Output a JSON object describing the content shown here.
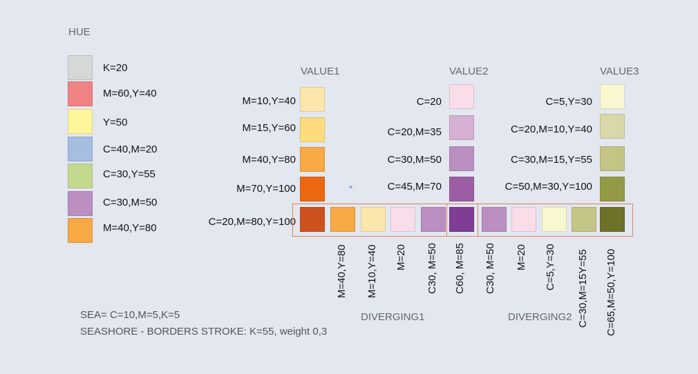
{
  "hue": {
    "title": "HUE",
    "items": [
      {
        "label": "K=20",
        "color": "#d6d7d8"
      },
      {
        "label": "M=60,Y=40",
        "color": "#ef8383"
      },
      {
        "label": "Y=50",
        "color": "#fff59a"
      },
      {
        "label": "C=40,M=20",
        "color": "#a4bde0"
      },
      {
        "label": "C=30,Y=55",
        "color": "#c3d98e"
      },
      {
        "label": "C=30,M=50",
        "color": "#bb8fc1"
      },
      {
        "label": "M=40,Y=80",
        "color": "#f6a944"
      }
    ]
  },
  "value1": {
    "title": "VALUE1",
    "items": [
      {
        "label": "M=10,Y=40",
        "color": "#fde6ab"
      },
      {
        "label": "M=15,Y=60",
        "color": "#fedb7c"
      },
      {
        "label": "M=40,Y=80",
        "color": "#f6a944"
      },
      {
        "label": "M=70,Y=100",
        "color": "#ec6810"
      },
      {
        "label": "C=20,M=80,Y=100",
        "color": "#cd5220"
      }
    ]
  },
  "value2": {
    "title": "VALUE2",
    "items": [
      {
        "label": "C=20",
        "color": "#f9dde8"
      },
      {
        "label": "C=20,M=35",
        "color": "#d6b0d2"
      },
      {
        "label": "C=30,M=50",
        "color": "#bb8fc1"
      },
      {
        "label": "C=45,M=70",
        "color": "#9d5ea6"
      },
      {
        "label": "C60, M=85",
        "color": "#7f3d95"
      }
    ]
  },
  "value3": {
    "title": "VALUE3",
    "items": [
      {
        "label": "C=5,Y=30",
        "color": "#f8f7cf"
      },
      {
        "label": "C=20,M=10,Y=40",
        "color": "#dad8a8"
      },
      {
        "label": "C=30,M=15,Y=55",
        "color": "#c4c486"
      },
      {
        "label": "C=50,M=30,Y=100",
        "color": "#939a45"
      },
      {
        "label": "C=65,M=50,Y=100",
        "color": "#6e7128"
      }
    ]
  },
  "diverging1": {
    "title": "DIVERGING1",
    "items": [
      {
        "label": "M=40,Y=80",
        "color": "#f6a944"
      },
      {
        "label": "M=10,Y=40",
        "color": "#fde6ab"
      },
      {
        "label": "M=20",
        "color": "#f9dde8"
      },
      {
        "label": "C30, M=50",
        "color": "#bb8fc1"
      }
    ]
  },
  "diverging2": {
    "title": "DIVERGING2",
    "items": [
      {
        "label": "C30, M=50",
        "color": "#bb8fc1"
      },
      {
        "label": "M=20",
        "color": "#f9dde8"
      },
      {
        "label": "C=5,Y=30",
        "color": "#f8f7cf"
      },
      {
        "label": "C=30,M=15Y=55",
        "color": "#c4c486"
      }
    ]
  },
  "notes": {
    "sea": "SEA= C=10,M=5,K=5",
    "seashore": "SEASHORE - BORDERS STROKE: K=55, weight 0,3"
  },
  "frame_color": "#e0805a"
}
